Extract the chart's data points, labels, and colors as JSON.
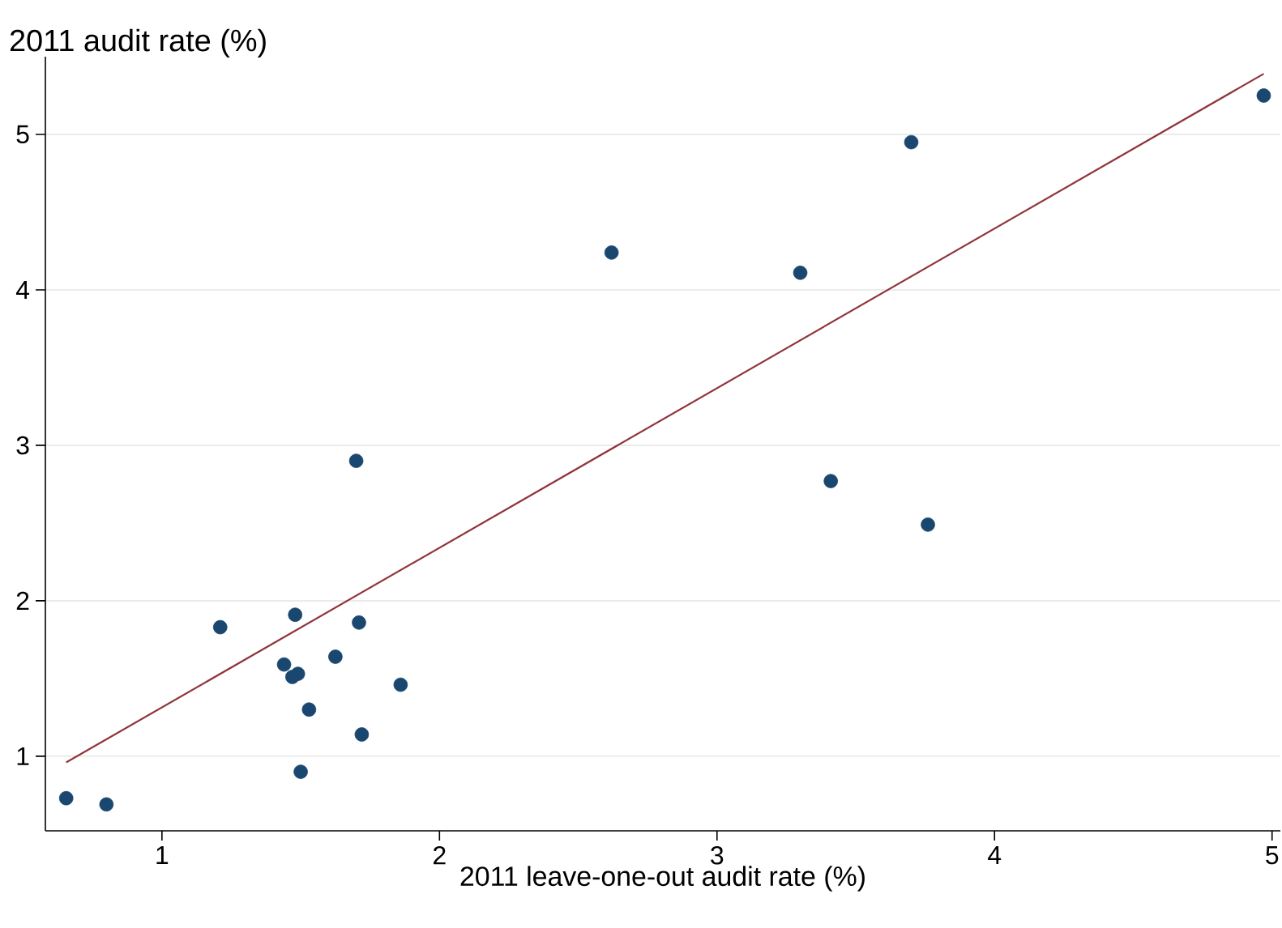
{
  "chart_data": {
    "type": "scatter",
    "xlabel": "2011 leave-one-out audit rate (%)",
    "ylabel": "2011 audit rate (%)",
    "xlim": [
      0.58,
      5.03
    ],
    "ylim": [
      0.52,
      5.5
    ],
    "xticks": [
      1,
      2,
      3,
      4,
      5
    ],
    "yticks": [
      1,
      2,
      3,
      4,
      5
    ],
    "grid": "y",
    "series": [
      {
        "color": "#1a476f",
        "x": [
          0.655,
          0.8,
          1.21,
          1.44,
          1.47,
          1.49,
          1.48,
          1.53,
          1.5,
          1.625,
          1.7,
          1.71,
          1.72,
          1.86,
          2.62,
          3.3,
          3.41,
          3.7,
          3.76,
          4.97
        ],
        "values": [
          0.73,
          0.69,
          1.83,
          1.59,
          1.51,
          1.53,
          1.91,
          1.3,
          0.9,
          1.64,
          2.9,
          1.86,
          1.14,
          1.46,
          4.24,
          4.11,
          2.77,
          4.95,
          2.49,
          5.25
        ]
      },
      {
        "type": "line",
        "color": "#90353b",
        "x": [
          0.655,
          4.97
        ],
        "values": [
          0.96,
          5.39
        ]
      }
    ]
  }
}
